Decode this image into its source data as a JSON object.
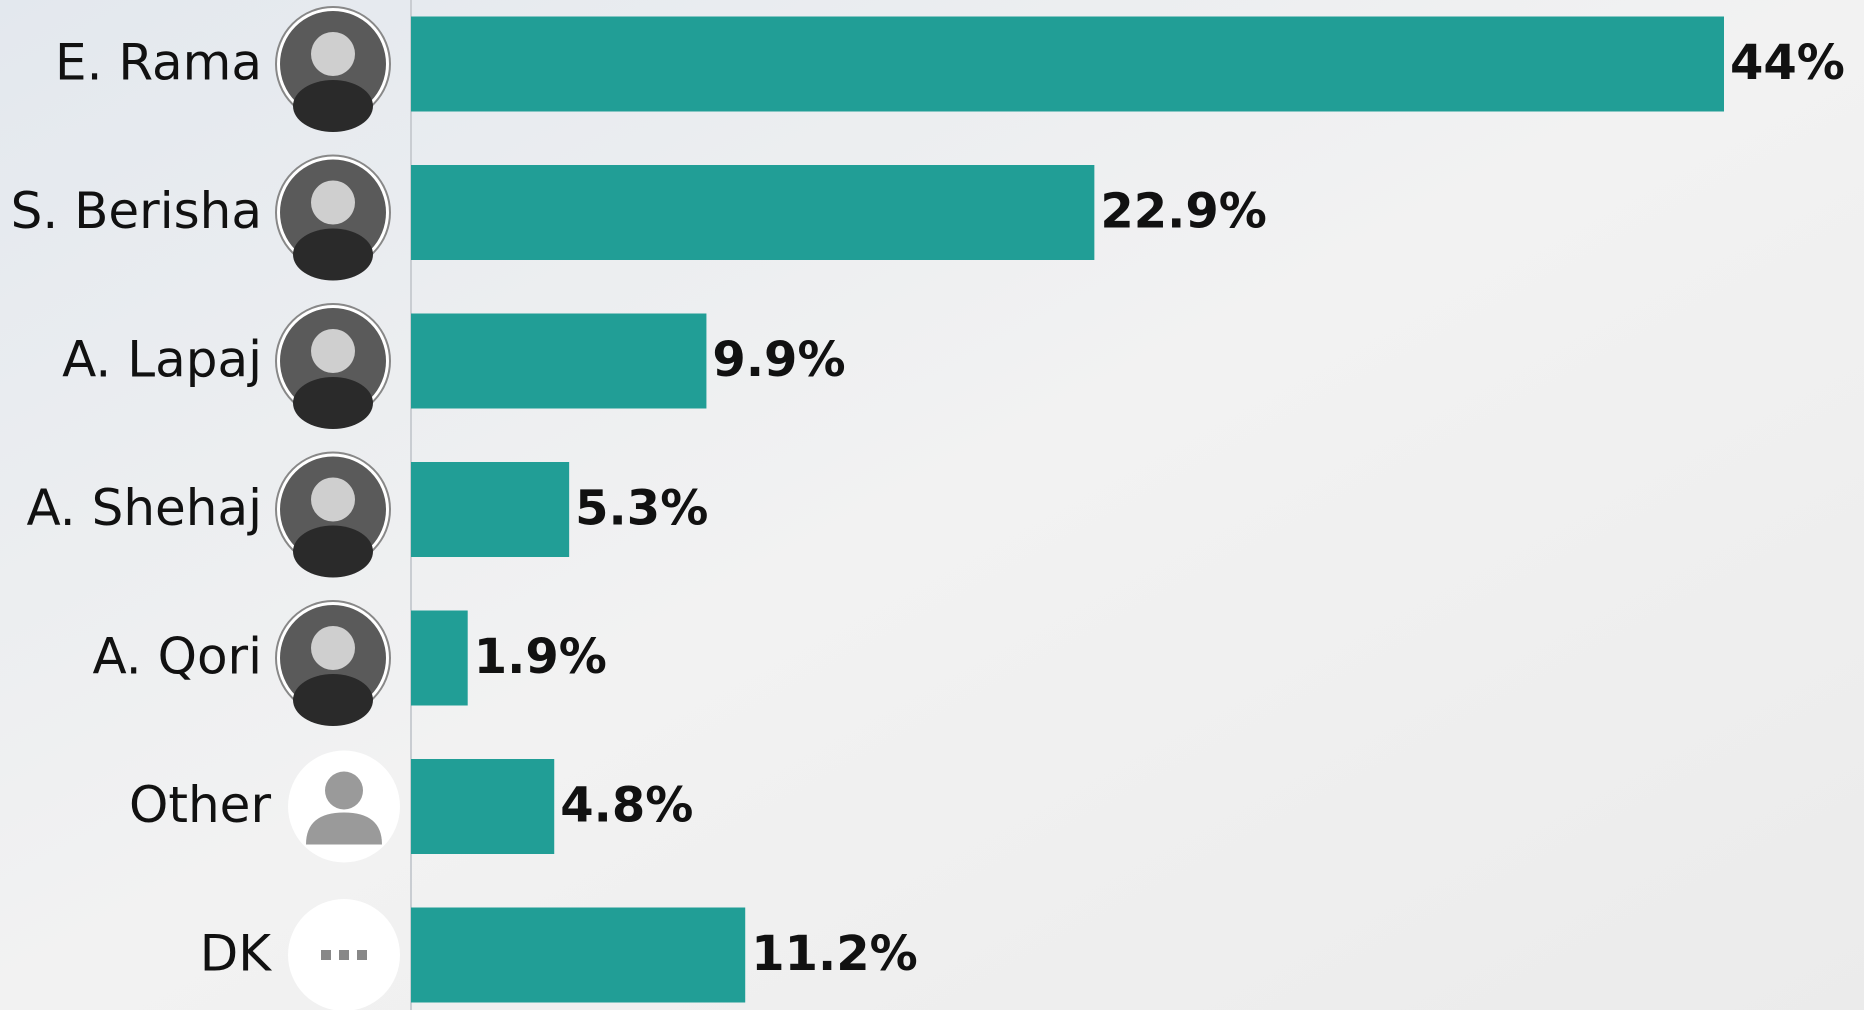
{
  "chart_data": {
    "type": "bar",
    "orientation": "horizontal",
    "categories": [
      "E. Rama",
      "S. Berisha",
      "A. Lapaj",
      "A. Shehaj",
      "A. Qori",
      "Other",
      "DK"
    ],
    "values": [
      44,
      22.9,
      9.9,
      5.3,
      1.9,
      4.8,
      11.2
    ],
    "value_labels": [
      "44%",
      "22.9%",
      "9.9%",
      "5.3%",
      "1.9%",
      "4.8%",
      "11.2%"
    ],
    "color": "#219e96"
  }
}
